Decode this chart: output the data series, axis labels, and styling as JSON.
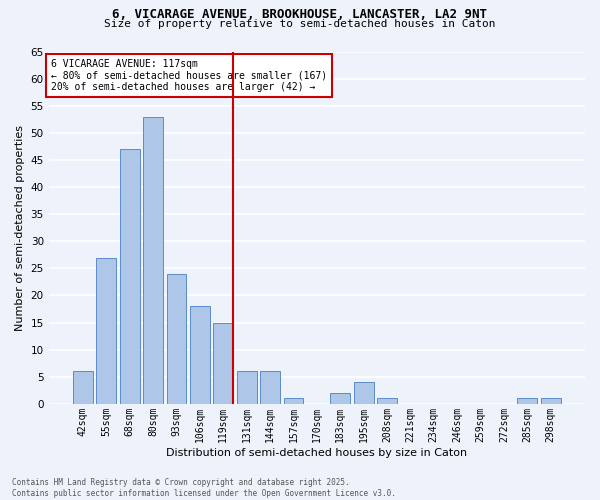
{
  "title1": "6, VICARAGE AVENUE, BROOKHOUSE, LANCASTER, LA2 9NT",
  "title2": "Size of property relative to semi-detached houses in Caton",
  "xlabel": "Distribution of semi-detached houses by size in Caton",
  "ylabel": "Number of semi-detached properties",
  "categories": [
    "42sqm",
    "55sqm",
    "68sqm",
    "80sqm",
    "93sqm",
    "106sqm",
    "119sqm",
    "131sqm",
    "144sqm",
    "157sqm",
    "170sqm",
    "183sqm",
    "195sqm",
    "208sqm",
    "221sqm",
    "234sqm",
    "246sqm",
    "259sqm",
    "272sqm",
    "285sqm",
    "298sqm"
  ],
  "values": [
    6,
    27,
    47,
    53,
    24,
    18,
    15,
    6,
    6,
    1,
    0,
    2,
    4,
    1,
    0,
    0,
    0,
    0,
    0,
    1,
    1
  ],
  "bar_color": "#aec6e8",
  "bar_edge_color": "#5b8cc8",
  "background_color": "#eef2fb",
  "grid_color": "#ffffff",
  "vline_index": 6,
  "vline_color": "#cc0000",
  "annotation_title": "6 VICARAGE AVENUE: 117sqm",
  "annotation_line1": "← 80% of semi-detached houses are smaller (167)",
  "annotation_line2": "20% of semi-detached houses are larger (42) →",
  "annotation_box_color": "#ffffff",
  "annotation_box_edge": "#cc0000",
  "ylim": [
    0,
    65
  ],
  "yticks": [
    0,
    5,
    10,
    15,
    20,
    25,
    30,
    35,
    40,
    45,
    50,
    55,
    60,
    65
  ],
  "footer_line1": "Contains HM Land Registry data © Crown copyright and database right 2025.",
  "footer_line2": "Contains public sector information licensed under the Open Government Licence v3.0."
}
